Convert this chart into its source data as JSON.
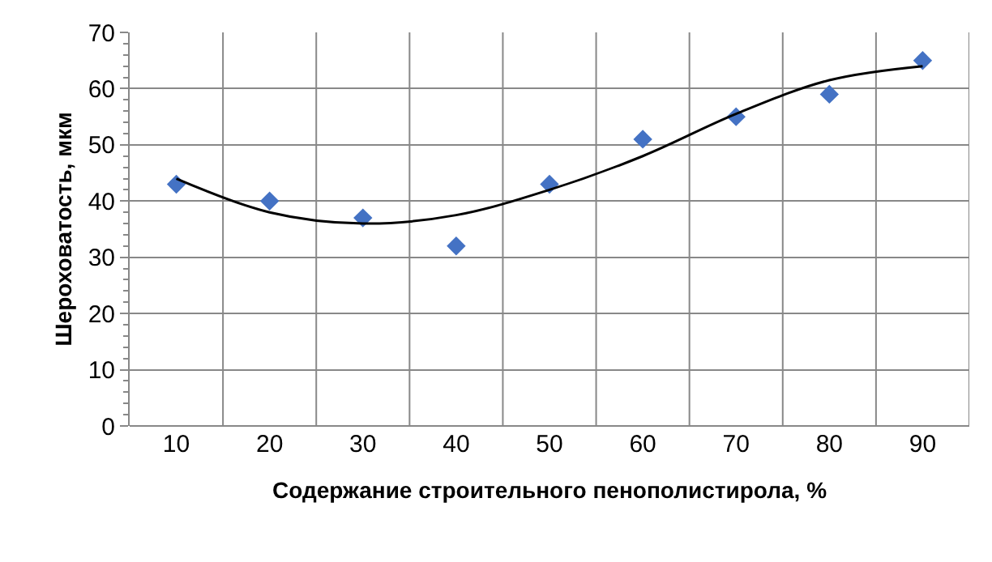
{
  "chart_data": {
    "type": "scatter",
    "xlabel": "Содержание строительного пенополистирола, %",
    "ylabel": "Шероховатость, мкм",
    "categories": [
      "10",
      "20",
      "30",
      "40",
      "50",
      "60",
      "70",
      "80",
      "90"
    ],
    "series": [
      {
        "color": "#4472c4",
        "marker": "diamond",
        "values": [
          43,
          40,
          37,
          32,
          43,
          51,
          55,
          59,
          65
        ]
      },
      {
        "type": "line",
        "color": "#000000",
        "marker": "none",
        "line_style": "solid",
        "values": [
          44,
          38,
          36,
          37.5,
          42,
          48,
          55.5,
          61.5,
          64
        ]
      }
    ],
    "ylim": [
      0,
      70
    ],
    "yticks": [
      0,
      10,
      20,
      30,
      40,
      50,
      60,
      70
    ],
    "grid": true
  }
}
